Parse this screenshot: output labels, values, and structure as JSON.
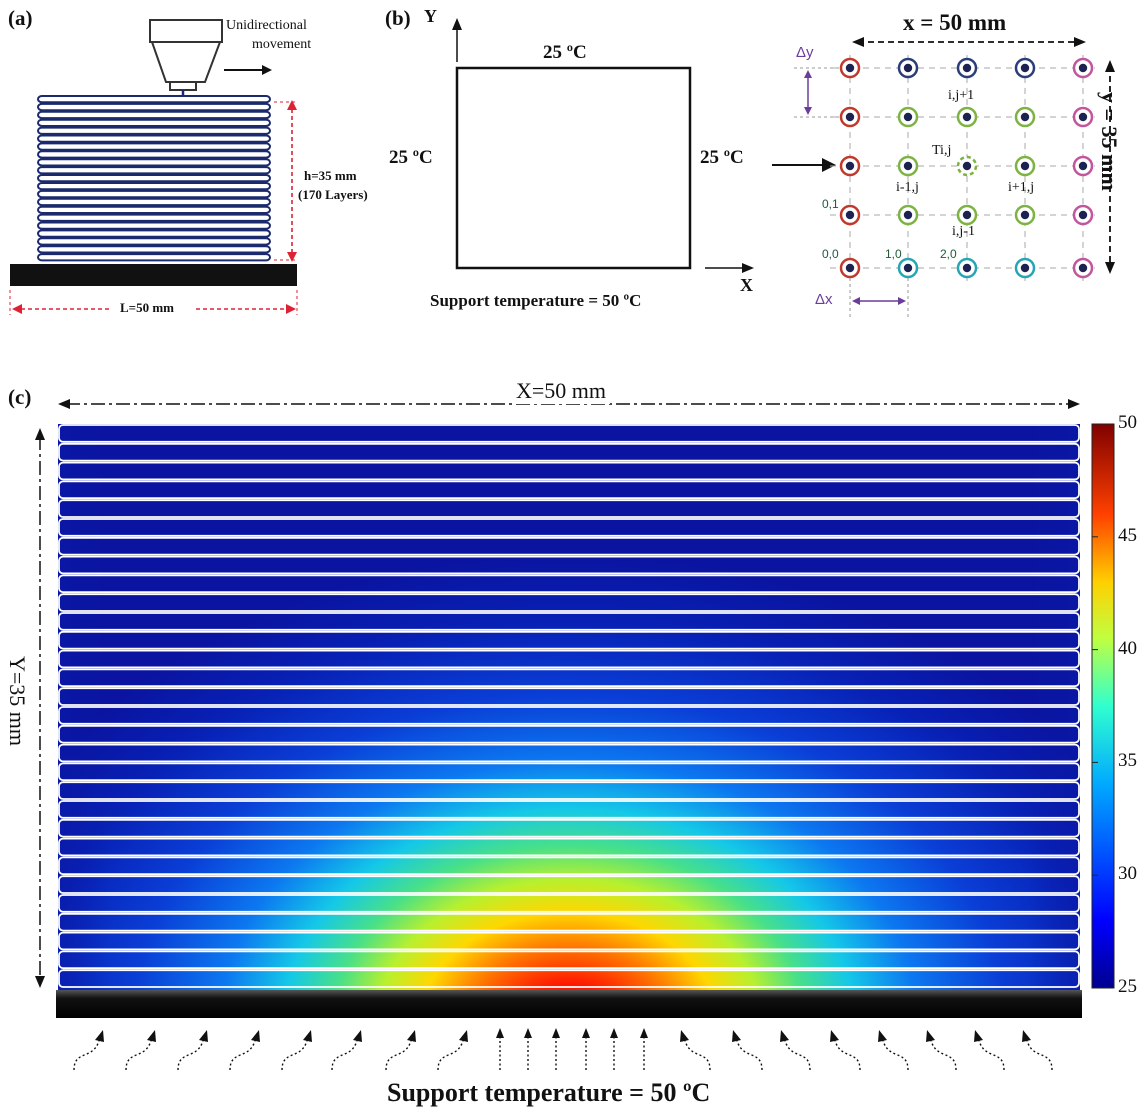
{
  "panel_a": {
    "label": "(a)",
    "nozzle_note_line1": "Unidirectional",
    "nozzle_note_line2": "movement",
    "height_line1": "h=35 mm",
    "height_line2": "(170 Layers)",
    "length": "L=50 mm"
  },
  "panel_b": {
    "label": "(b)",
    "axis_y": "Y",
    "axis_x": "X",
    "top_temp": "25 ºC",
    "left_temp": "25 ºC",
    "right_temp": "25 ºC",
    "support": "Support temperature = 50 ºC",
    "grid_width": "x = 50 mm",
    "grid_height": "y = 35 mm",
    "dy": "Δy",
    "dx": "Δx",
    "node_ij1": "i,j+1",
    "node_tij": "Ti,j",
    "node_im1j": "i-1,j",
    "node_ip1j": "i+1,j",
    "node_ijm1": "i,j-1",
    "node_01": "0,1",
    "node_00": "0,0",
    "node_10": "1,0",
    "node_20": "2,0"
  },
  "panel_c": {
    "label": "(c)",
    "width": "X=50 mm",
    "height": "Y=35 mm",
    "support": "Support temperature = 50 ºC",
    "colorbar_ticks": [
      "50",
      "45",
      "40",
      "35",
      "30",
      "25"
    ],
    "colorbar_min": 25,
    "colorbar_max": 50,
    "layer_count_shown": 30
  },
  "colors": {
    "node_red": "#c0392b",
    "node_navy": "#2c3e7a",
    "node_green": "#7cb342",
    "node_magenta": "#c2559c",
    "node_cyan": "#26a6b5",
    "accent_purple": "#6a3d9a"
  }
}
